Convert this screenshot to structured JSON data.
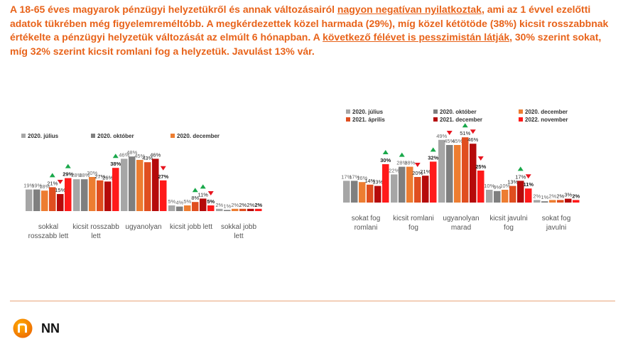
{
  "headline": {
    "p1": "A 18-65 éves magyarok pénzügyi helyzetükről és annak változásairól ",
    "u1": "nagyon negatívan nyilatkoztak",
    "p2": ", ami az 1 évvel ezelőtti adatok tükrében még figyelemreméltóbb. A megkérdezettek közel harmada (29%), míg közel kétötöde (38%) kicsit rosszabbnak értékelte a pénzügyi helyzetük változását az elmúlt 6 hónapban. A ",
    "u2": "következő félévet is pesszimistán látják",
    "p3": ", 30% szerint sokat, míg 32% szerint kicsit romlani fog a helyzetük. Javulást 13% vár."
  },
  "colors": [
    "#a6a6a6",
    "#7f7f7f",
    "#ed7d31",
    "#e04e1f",
    "#b50a0a",
    "#ff1a1a"
  ],
  "chart_data": [
    {
      "type": "bar",
      "title": "",
      "legend": [
        "2020. július",
        "2020. október",
        "2020. december"
      ],
      "series_names": [
        "2020. július",
        "2020. október",
        "2020. december",
        "2021. április",
        "2021. december",
        "2022. november"
      ],
      "categories": [
        [
          "sokkal",
          "rosszabb lett"
        ],
        [
          "kicsit rosszabb",
          "lett"
        ],
        [
          "ugyanolyan"
        ],
        [
          "kicsit jobb lett"
        ],
        [
          "sokkal jobb",
          "lett"
        ]
      ],
      "values": [
        [
          19,
          19,
          18,
          21,
          15,
          29
        ],
        [
          28,
          28,
          30,
          27,
          26,
          38
        ],
        [
          46,
          48,
          45,
          43,
          46,
          27
        ],
        [
          5,
          4,
          5,
          8,
          11,
          5
        ],
        [
          2,
          1,
          2,
          2,
          2,
          2
        ]
      ],
      "markers": [
        [
          "",
          "",
          "",
          "up",
          "down",
          "up"
        ],
        [
          "",
          "",
          "",
          "",
          "",
          "up"
        ],
        [
          "",
          "",
          "",
          "",
          "",
          "down"
        ],
        [
          "",
          "",
          "",
          "up",
          "up",
          "down"
        ],
        [
          "",
          "",
          "",
          "",
          "",
          ""
        ]
      ],
      "ylim": [
        0,
        55
      ]
    },
    {
      "type": "bar",
      "title": "",
      "legend": [
        "2020. július",
        "2020. október",
        "2020. december",
        "2021. április",
        "2021. december",
        "2022. november"
      ],
      "series_names": [
        "2020. július",
        "2020. október",
        "2020. december",
        "2021. április",
        "2021. december",
        "2022. november"
      ],
      "categories": [
        [
          "sokat fog",
          "romlani"
        ],
        [
          "kicsit romlani",
          "fog"
        ],
        [
          "ugyanolyan",
          "marad"
        ],
        [
          "kicsit javulni",
          "fog"
        ],
        [
          "sokat fog",
          "javulni"
        ]
      ],
      "values": [
        [
          17,
          17,
          16,
          14,
          13,
          30
        ],
        [
          22,
          28,
          28,
          20,
          21,
          32
        ],
        [
          49,
          45,
          45,
          51,
          46,
          25
        ],
        [
          10,
          9,
          10,
          13,
          17,
          11
        ],
        [
          2,
          1,
          2,
          2,
          3,
          2
        ]
      ],
      "markers": [
        [
          "",
          "",
          "",
          "",
          "",
          "up"
        ],
        [
          "",
          "up",
          "",
          "down",
          "",
          "up"
        ],
        [
          "",
          "down",
          "",
          "up",
          "down",
          "down"
        ],
        [
          "",
          "",
          "",
          "",
          "up",
          "down"
        ],
        [
          "",
          "",
          "",
          "",
          "",
          ""
        ]
      ],
      "ylim": [
        0,
        55
      ]
    }
  ],
  "brand": {
    "logo_text": "NN"
  }
}
